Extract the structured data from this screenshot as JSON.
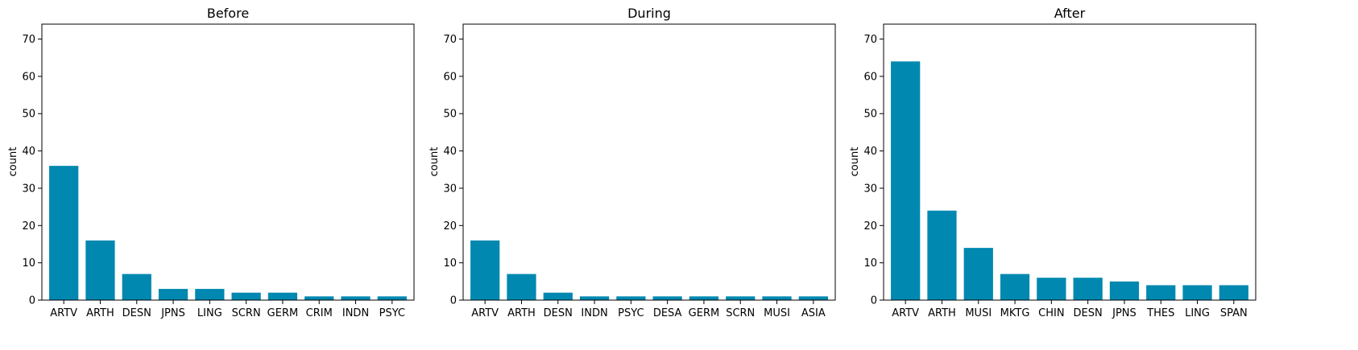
{
  "chart_data": [
    {
      "type": "bar",
      "title": "Before",
      "ylabel": "count",
      "xlabel": "",
      "ylim": [
        0,
        74
      ],
      "yticks": [
        0,
        10,
        20,
        30,
        40,
        50,
        60,
        70
      ],
      "categories": [
        "ARTV",
        "ARTH",
        "DESN",
        "JPNS",
        "LING",
        "SCRN",
        "GERM",
        "CRIM",
        "INDN",
        "PSYC"
      ],
      "values": [
        36,
        16,
        7,
        3,
        3,
        2,
        2,
        1,
        1,
        1
      ],
      "grid": false
    },
    {
      "type": "bar",
      "title": "During",
      "ylabel": "count",
      "xlabel": "",
      "ylim": [
        0,
        74
      ],
      "yticks": [
        0,
        10,
        20,
        30,
        40,
        50,
        60,
        70
      ],
      "categories": [
        "ARTV",
        "ARTH",
        "DESN",
        "INDN",
        "PSYC",
        "DESA",
        "GERM",
        "SCRN",
        "MUSI",
        "ASIA"
      ],
      "values": [
        16,
        7,
        2,
        1,
        1,
        1,
        1,
        1,
        1,
        1
      ],
      "grid": false
    },
    {
      "type": "bar",
      "title": "After",
      "ylabel": "count",
      "xlabel": "",
      "ylim": [
        0,
        74
      ],
      "yticks": [
        0,
        10,
        20,
        30,
        40,
        50,
        60,
        70
      ],
      "categories": [
        "ARTV",
        "ARTH",
        "MUSI",
        "MKTG",
        "CHIN",
        "DESN",
        "JPNS",
        "THES",
        "LING",
        "SPAN"
      ],
      "values": [
        64,
        24,
        14,
        7,
        6,
        6,
        5,
        4,
        4,
        4
      ],
      "grid": false
    }
  ],
  "colors": {
    "bar": "#0088b0",
    "axis": "#000000"
  }
}
